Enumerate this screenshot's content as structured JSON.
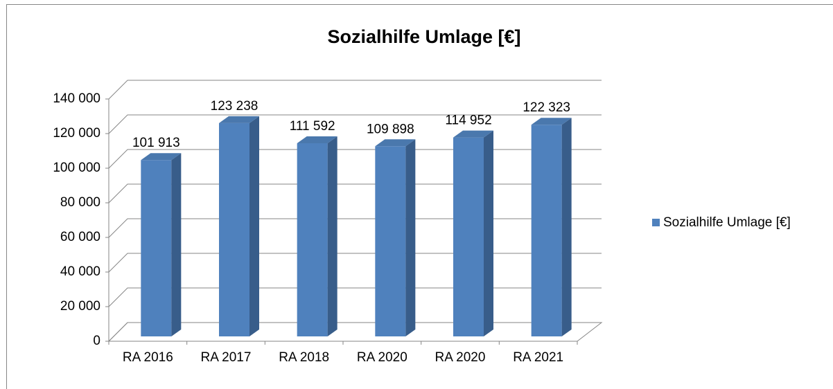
{
  "chart_data": {
    "type": "bar",
    "title": "Sozialhilfe Umlage [€]",
    "categories": [
      "RA 2016",
      "RA 2017",
      "RA 2018",
      "RA 2020",
      "RA 2020",
      "RA 2021"
    ],
    "series": [
      {
        "name": "Sozialhilfe Umlage [€]",
        "color": "#4f81bd",
        "values": [
          101913,
          123238,
          111592,
          109898,
          114952,
          122323
        ],
        "value_labels": [
          "101 913",
          "123 238",
          "111 592",
          "109 898",
          "114 952",
          "122 323"
        ]
      }
    ],
    "ylim": [
      0,
      140000
    ],
    "yticks": [
      0,
      {
        "value": 20000,
        "label": "20 000"
      },
      {
        "value": 40000,
        "label": "40 000"
      },
      {
        "value": 60000,
        "label": "60 000"
      },
      {
        "value": 80000,
        "label": "80 000"
      },
      {
        "value": 100000,
        "label": "100 000"
      },
      {
        "value": 120000,
        "label": "120 000"
      },
      {
        "value": 140000,
        "label": "140 000"
      }
    ],
    "grid": true,
    "legend": "right"
  }
}
